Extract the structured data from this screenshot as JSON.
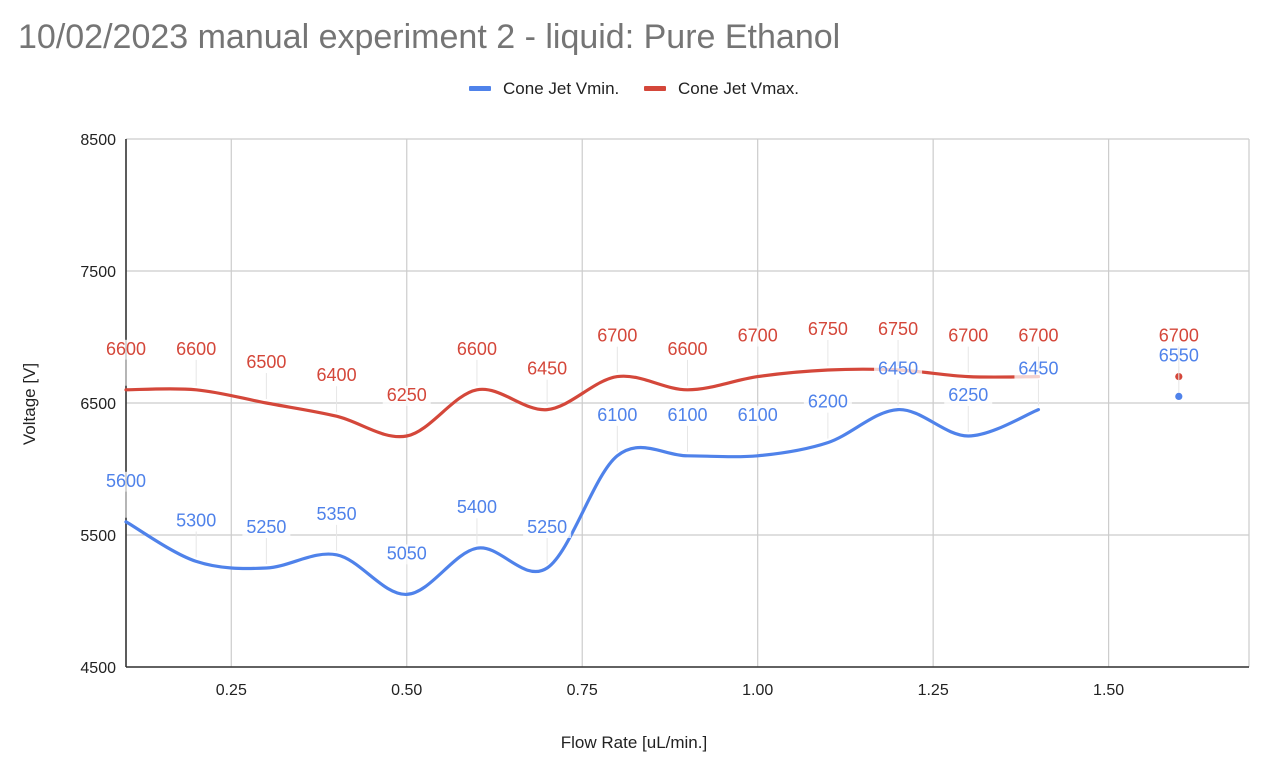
{
  "chart_data": {
    "type": "line",
    "title": "10/02/2023 manual experiment 2 - liquid: Pure Ethanol",
    "xlabel": "Flow Rate [uL/min.]",
    "ylabel": "Voltage [V]",
    "xlim": [
      0.1,
      1.7
    ],
    "ylim": [
      4500,
      8500
    ],
    "x_ticks": [
      0.25,
      0.5,
      0.75,
      1.0,
      1.25,
      1.5
    ],
    "x_tick_labels": [
      "0.25",
      "0.50",
      "0.75",
      "1.00",
      "1.25",
      "1.50"
    ],
    "y_ticks": [
      4500,
      5500,
      6500,
      7500,
      8500
    ],
    "y_tick_labels": [
      "4500",
      "5500",
      "6500",
      "7500",
      "8500"
    ],
    "grid": true,
    "legend_position": "top",
    "smooth": true,
    "series": [
      {
        "name": "Cone Jet Vmin.",
        "color": "#4f82ea",
        "points": [
          [
            0.1,
            5600
          ],
          [
            0.2,
            5300
          ],
          [
            0.3,
            5250
          ],
          [
            0.4,
            5350
          ],
          [
            0.5,
            5050
          ],
          [
            0.6,
            5400
          ],
          [
            0.7,
            5250
          ],
          [
            0.8,
            6100
          ],
          [
            0.9,
            6100
          ],
          [
            1.0,
            6100
          ],
          [
            1.1,
            6200
          ],
          [
            1.2,
            6450
          ],
          [
            1.3,
            6250
          ],
          [
            1.4,
            6450
          ]
        ],
        "isolated_points": [
          [
            1.6,
            6550
          ]
        ]
      },
      {
        "name": "Cone Jet Vmax.",
        "color": "#d4473a",
        "points": [
          [
            0.1,
            6600
          ],
          [
            0.2,
            6600
          ],
          [
            0.3,
            6500
          ],
          [
            0.4,
            6400
          ],
          [
            0.5,
            6250
          ],
          [
            0.6,
            6600
          ],
          [
            0.7,
            6450
          ],
          [
            0.8,
            6700
          ],
          [
            0.9,
            6600
          ],
          [
            1.0,
            6700
          ],
          [
            1.1,
            6750
          ],
          [
            1.2,
            6750
          ],
          [
            1.3,
            6700
          ],
          [
            1.4,
            6700
          ]
        ],
        "isolated_points": [
          [
            1.6,
            6700
          ]
        ]
      }
    ]
  }
}
